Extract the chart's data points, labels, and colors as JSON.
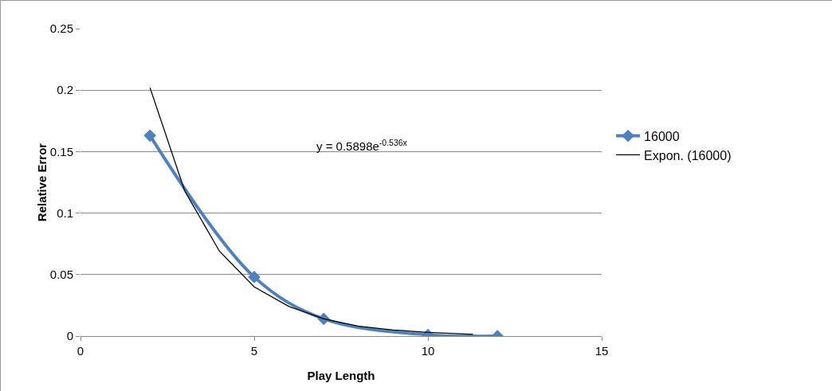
{
  "chart_data": {
    "type": "line",
    "xlabel": "Play Length",
    "ylabel": "Relative Error",
    "xlim": [
      0,
      15
    ],
    "xticks": [
      0,
      5,
      10,
      15
    ],
    "ylim": [
      0,
      0.25
    ],
    "yticks": [
      0,
      0.05,
      0.1,
      0.15,
      0.2,
      0.25
    ],
    "grid": "y",
    "legend": "right",
    "annotations": [
      "y = 0.5898e$^{-0.536x}$"
    ],
    "series": [
      {
        "name": "16000",
        "color": "#4f81bd",
        "marker": "diamond",
        "x": [
          2,
          5,
          7,
          10,
          12
        ],
        "values": [
          0.163,
          0.048,
          0.014,
          0.001,
          0
        ]
      },
      {
        "name": "Expon. (16000)",
        "color": "#000000",
        "marker": "none",
        "x": [
          2,
          3,
          4,
          5,
          6,
          7,
          8,
          9,
          10,
          11.3
        ],
        "values": [
          0.202,
          0.118,
          0.069,
          0.04,
          0.024,
          0.014,
          0.008,
          0.005,
          0.003,
          0.0014
        ]
      }
    ]
  }
}
